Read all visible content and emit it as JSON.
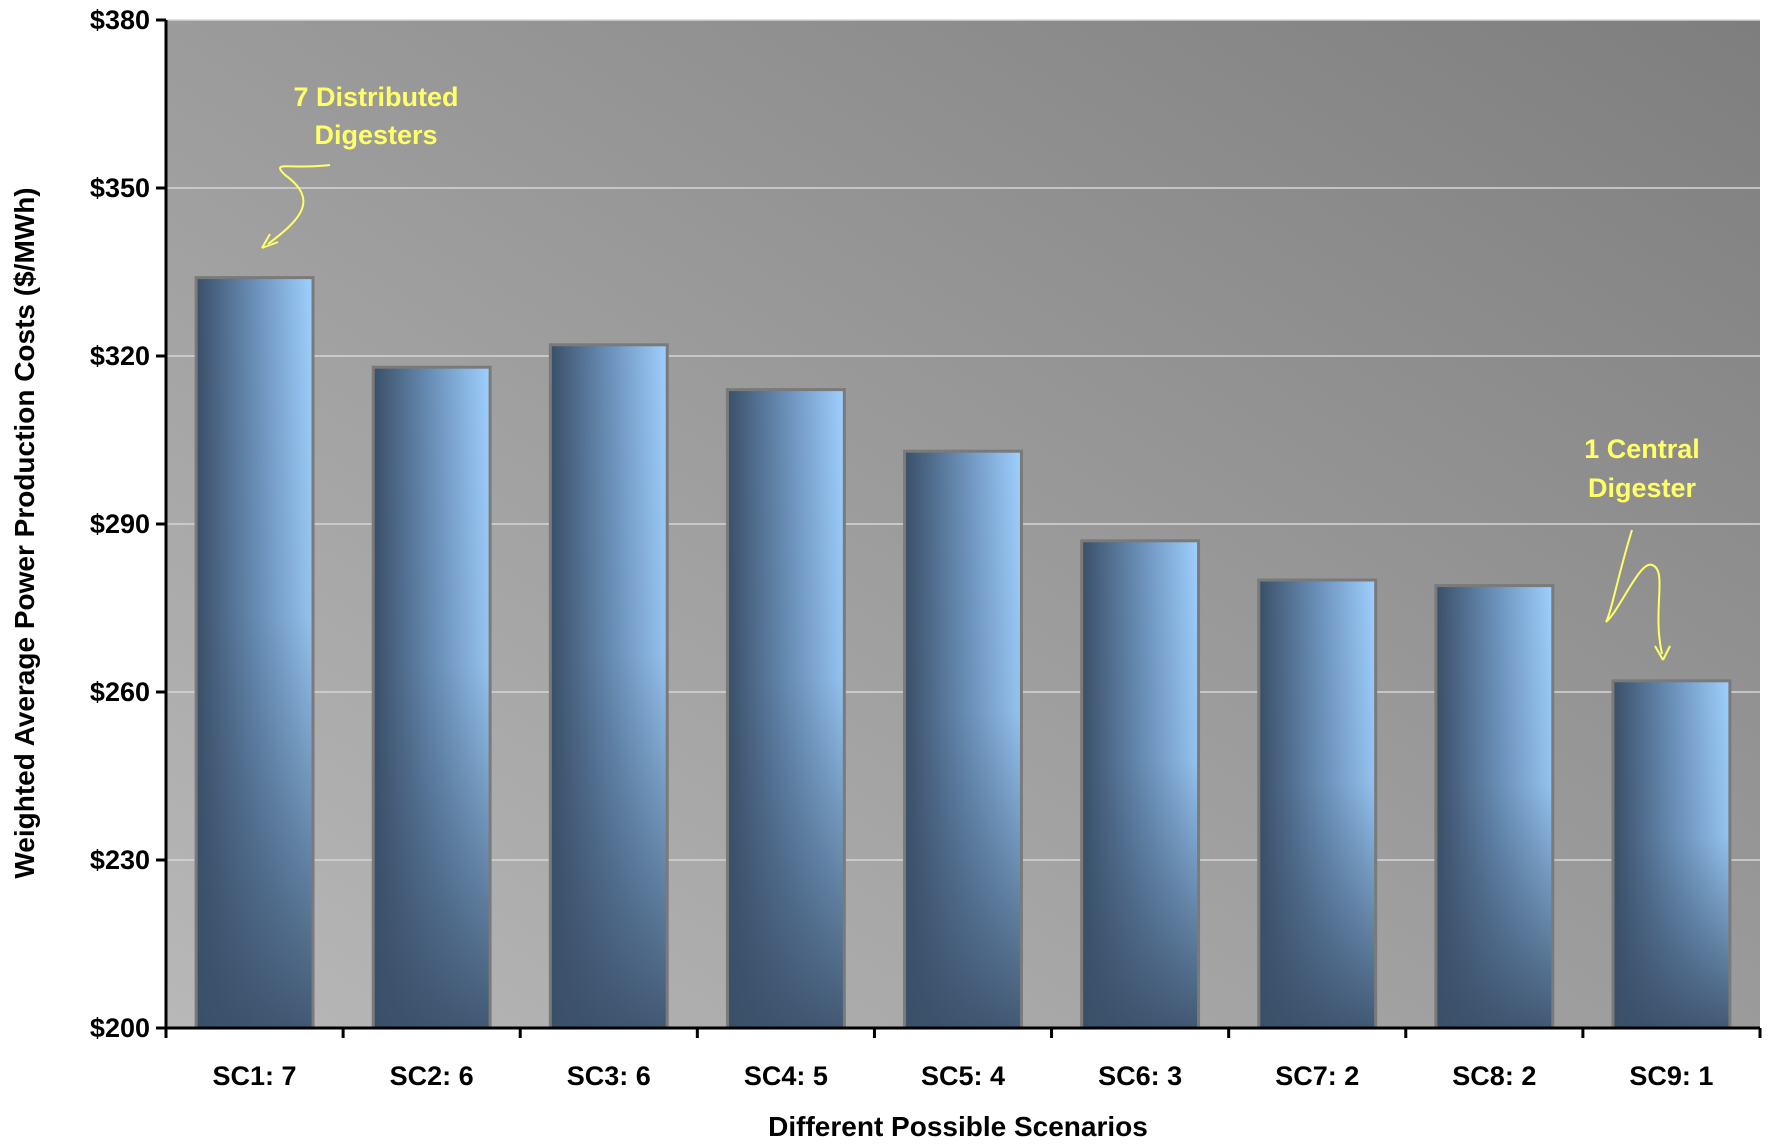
{
  "chart_data": {
    "type": "bar",
    "title": "",
    "xlabel": "Different Possible Scenarios",
    "ylabel": "Weighted Average Power Production Costs ($/MWh)",
    "categories": [
      "SC1: 7",
      "SC2: 6",
      "SC3: 6",
      "SC4: 5",
      "SC5: 4",
      "SC6: 3",
      "SC7: 2",
      "SC8: 2",
      "SC9: 1"
    ],
    "values": [
      334,
      318,
      322,
      314,
      303,
      287,
      280,
      279,
      262
    ],
    "ylim": [
      200,
      380
    ],
    "yticks": [
      200,
      230,
      260,
      290,
      320,
      350,
      380
    ],
    "ytick_labels": [
      "$200",
      "$230",
      "$260",
      "$290",
      "$320",
      "$350",
      "$380"
    ],
    "grid": true,
    "legend": "none",
    "annotations": [
      {
        "lines": [
          "7 Distributed",
          "Digesters"
        ],
        "category": "SC1: 7"
      },
      {
        "lines": [
          "1 Central",
          "Digester"
        ],
        "category": "SC9: 1"
      }
    ],
    "colors": {
      "bar_dark": "#3f5570",
      "bar_light": "#99ccff",
      "background_light": "#b8b8b8",
      "background_dark": "#808080",
      "annotation": "#ffff66"
    }
  }
}
